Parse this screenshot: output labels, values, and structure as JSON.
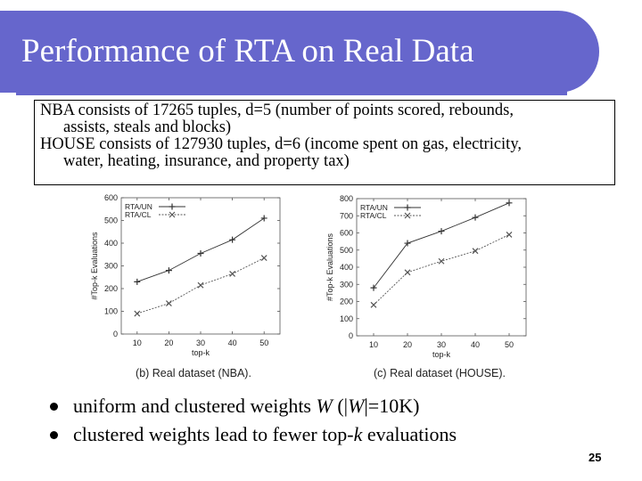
{
  "slide": {
    "title": "Performance of RTA on Real Data",
    "description": [
      {
        "text": "NBA consists of 17265 tuples, d=5 (number of points scored, rebounds,",
        "indent": false
      },
      {
        "text": "assists, steals and blocks)",
        "indent": true
      },
      {
        "text": "HOUSE consists of 127930 tuples, d=6 (income spent on gas, electricity,",
        "indent": false
      },
      {
        "text": "water, heating, insurance, and property tax)",
        "indent": true
      }
    ],
    "bullets": [
      [
        {
          "t": "uniform and clustered weights "
        },
        {
          "t": "W",
          "i": true
        },
        {
          "t": " (|"
        },
        {
          "t": "W",
          "i": true
        },
        {
          "t": "|=10K)"
        }
      ],
      [
        {
          "t": "clustered weights lead to fewer top-"
        },
        {
          "t": "k",
          "i": true
        },
        {
          "t": " evaluations"
        }
      ]
    ],
    "page_number": "25"
  },
  "chart_data": [
    {
      "type": "line",
      "caption": "(b) Real dataset (NBA).",
      "xlabel": "top-k",
      "ylabel": "#Top-k Evaluations",
      "x": [
        10,
        20,
        30,
        40,
        50
      ],
      "xticks": [
        10,
        20,
        30,
        40,
        50
      ],
      "ylim": [
        0,
        600
      ],
      "yticks": [
        0,
        100,
        200,
        300,
        400,
        500,
        600
      ],
      "legend_position": "top-left",
      "grid": false,
      "series": [
        {
          "name": "RTA/UN",
          "marker": "+",
          "values": [
            230,
            280,
            355,
            415,
            510
          ]
        },
        {
          "name": "RTA/CL",
          "marker": "x",
          "values": [
            90,
            135,
            215,
            265,
            335
          ]
        }
      ]
    },
    {
      "type": "line",
      "caption": "(c) Real dataset (HOUSE).",
      "xlabel": "top-k",
      "ylabel": "#Top-k Evaluations",
      "x": [
        10,
        20,
        30,
        40,
        50
      ],
      "xticks": [
        10,
        20,
        30,
        40,
        50
      ],
      "ylim": [
        0,
        800
      ],
      "yticks": [
        0,
        100,
        200,
        300,
        400,
        500,
        600,
        700,
        800
      ],
      "legend_position": "top-left",
      "grid": false,
      "series": [
        {
          "name": "RTA/UN",
          "marker": "+",
          "values": [
            280,
            540,
            610,
            690,
            775
          ]
        },
        {
          "name": "RTA/CL",
          "marker": "x",
          "values": [
            180,
            370,
            435,
            495,
            590
          ]
        }
      ]
    }
  ]
}
